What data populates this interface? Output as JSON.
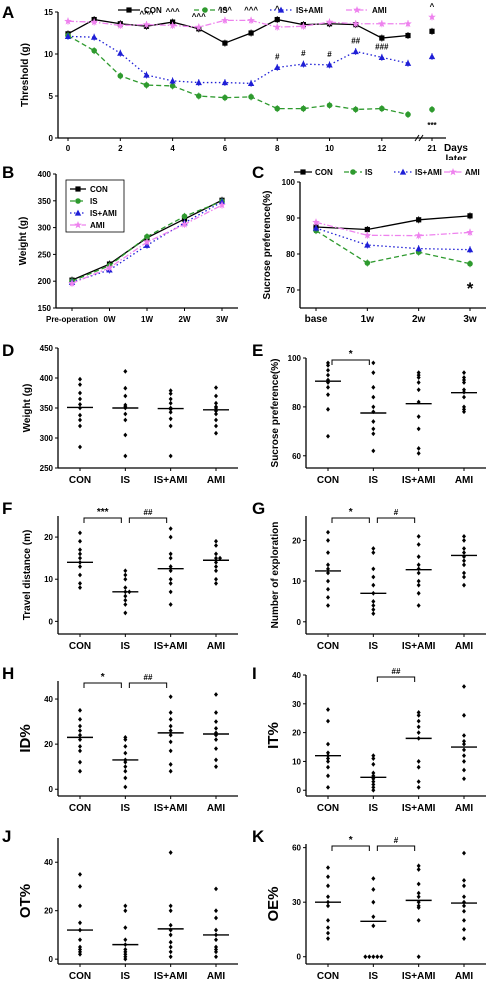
{
  "colors": {
    "con": "#000000",
    "is": "#2e9a2e",
    "isami": "#1f1fd6",
    "ami": "#ee82ee",
    "axis": "#000000"
  },
  "chart_data": [
    {
      "id": "A",
      "type": "line",
      "panel_label": "A",
      "ylabel": "Threshold (g)",
      "xlabel": "Days later",
      "ylim": [
        0,
        15
      ],
      "yticks": [
        0,
        5,
        10,
        15
      ],
      "x": [
        0,
        1,
        2,
        3,
        4,
        5,
        6,
        7,
        8,
        9,
        10,
        11,
        12,
        13,
        21
      ],
      "xtick_labels": [
        "0",
        "2",
        "4",
        "6",
        "8",
        "10",
        "12",
        "21"
      ],
      "xtick_values": [
        0,
        2,
        4,
        6,
        8,
        10,
        12,
        21
      ],
      "legend": [
        "CON",
        "IS",
        "IS+AMI",
        "AMI"
      ],
      "series": [
        {
          "name": "CON",
          "color": "#000000",
          "marker": "square",
          "dash": "solid",
          "values": [
            12.4,
            14.1,
            13.6,
            13.3,
            13.8,
            13.0,
            11.3,
            12.5,
            14.1,
            13.5,
            13.6,
            13.5,
            11.9,
            12.2,
            12.7
          ]
        },
        {
          "name": "IS",
          "color": "#2e9a2e",
          "marker": "circle",
          "dash": "dashed",
          "values": [
            12.2,
            10.4,
            7.4,
            6.3,
            6.2,
            5.0,
            4.8,
            4.9,
            3.5,
            3.5,
            3.9,
            3.4,
            3.5,
            2.8,
            3.4
          ]
        },
        {
          "name": "IS+AMI",
          "color": "#1f1fd6",
          "marker": "triangle",
          "dash": "dotted",
          "values": [
            12.1,
            12.0,
            10.1,
            7.5,
            6.8,
            6.6,
            6.6,
            6.5,
            8.4,
            8.8,
            8.7,
            10.3,
            9.6,
            8.9,
            9.7
          ]
        },
        {
          "name": "AMI",
          "color": "#ee82ee",
          "marker": "star",
          "dash": "dashdot",
          "values": [
            13.9,
            13.8,
            13.4,
            13.5,
            13.4,
            13.2,
            14.0,
            14.0,
            13.2,
            13.3,
            13.8,
            13.6,
            13.6,
            13.6,
            14.4
          ]
        }
      ],
      "annotations": [
        {
          "x": 3,
          "text": "^^^"
        },
        {
          "x": 4,
          "text": "^^^"
        },
        {
          "x": 5,
          "text": "^^^"
        },
        {
          "x": 6,
          "text": "^^^"
        },
        {
          "x": 7,
          "text": "^^^"
        },
        {
          "x": 8,
          "text": "^"
        },
        {
          "x": 8,
          "text": "#"
        },
        {
          "x": 9,
          "text": "#"
        },
        {
          "x": 10,
          "text": "#"
        },
        {
          "x": 11,
          "text": "##"
        },
        {
          "x": 12,
          "text": "###"
        },
        {
          "x": 21,
          "text": "^"
        },
        {
          "x": 21,
          "text": "***"
        }
      ]
    },
    {
      "id": "B",
      "type": "line",
      "panel_label": "B",
      "ylabel": "Weight (g)",
      "xlabel": "",
      "ylim": [
        150,
        400
      ],
      "yticks": [
        150,
        200,
        250,
        300,
        350,
        400
      ],
      "categories": [
        "Pre-operation",
        "0W",
        "1W",
        "2W",
        "3W"
      ],
      "legend": [
        "CON",
        "IS",
        "IS+AMI",
        "AMI"
      ],
      "series": [
        {
          "name": "CON",
          "color": "#000000",
          "marker": "square",
          "dash": "solid",
          "values": [
            202,
            232,
            281,
            316,
            351
          ]
        },
        {
          "name": "IS",
          "color": "#2e9a2e",
          "marker": "circle",
          "dash": "dashed",
          "values": [
            200,
            229,
            283,
            321,
            349
          ]
        },
        {
          "name": "IS+AMI",
          "color": "#1f1fd6",
          "marker": "triangle",
          "dash": "dotted",
          "values": [
            198,
            221,
            267,
            309,
            348
          ]
        },
        {
          "name": "AMI",
          "color": "#ee82ee",
          "marker": "star",
          "dash": "dashdot",
          "values": [
            196,
            225,
            273,
            306,
            342
          ]
        }
      ]
    },
    {
      "id": "C",
      "type": "line",
      "panel_label": "C",
      "ylabel": "Sucrose preference(%)",
      "xlabel": "",
      "ylim": [
        65,
        100
      ],
      "yticks": [
        70,
        80,
        90,
        100
      ],
      "categories": [
        "base",
        "1w",
        "2w",
        "3w"
      ],
      "legend": [
        "CON",
        "IS",
        "IS+AMI",
        "AMI"
      ],
      "series": [
        {
          "name": "CON",
          "color": "#000000",
          "marker": "square",
          "dash": "solid",
          "values": [
            87.5,
            86.8,
            89.5,
            90.6
          ]
        },
        {
          "name": "IS",
          "color": "#2e9a2e",
          "marker": "circle",
          "dash": "dashed",
          "values": [
            86.5,
            77.5,
            80.5,
            77.3
          ]
        },
        {
          "name": "IS+AMI",
          "color": "#1f1fd6",
          "marker": "triangle",
          "dash": "dotted",
          "values": [
            87.2,
            82.5,
            81.5,
            81.2
          ]
        },
        {
          "name": "AMI",
          "color": "#ee82ee",
          "marker": "star",
          "dash": "dashdot",
          "values": [
            88.8,
            85.2,
            85.1,
            86.0
          ]
        }
      ],
      "annotations": [
        {
          "x": "3w",
          "text": "*"
        }
      ]
    },
    {
      "id": "D",
      "type": "scatter",
      "panel_label": "D",
      "ylabel": "Weight (g)",
      "ylim": [
        250,
        450
      ],
      "yticks": [
        250,
        300,
        350,
        400,
        450
      ],
      "categories": [
        "CON",
        "IS",
        "IS+AMI",
        "AMI"
      ],
      "means": [
        351,
        350,
        349,
        347
      ],
      "points": [
        [
          398,
          389,
          375,
          365,
          356,
          350,
          338,
          330,
          320,
          285
        ],
        [
          411,
          383,
          370,
          355,
          352,
          350,
          340,
          330,
          305,
          270
        ],
        [
          379,
          374,
          365,
          358,
          350,
          348,
          343,
          332,
          320,
          270
        ],
        [
          384,
          370,
          358,
          352,
          350,
          345,
          340,
          330,
          320,
          308
        ]
      ]
    },
    {
      "id": "E",
      "type": "scatter",
      "panel_label": "E",
      "ylabel": "Sucrose preference(%)",
      "ylim": [
        55,
        100
      ],
      "yticks": [
        60,
        80,
        100
      ],
      "categories": [
        "CON",
        "IS",
        "IS+AMI",
        "AMI"
      ],
      "means": [
        90.5,
        77.5,
        81.3,
        85.8
      ],
      "points": [
        [
          98,
          97,
          95,
          93,
          91,
          90,
          88,
          85,
          79,
          68
        ],
        [
          98,
          94,
          88,
          84,
          80,
          78,
          74,
          71,
          69,
          62
        ],
        [
          94,
          93,
          92,
          90,
          87,
          82,
          76,
          71,
          63,
          61
        ],
        [
          94,
          92,
          91,
          90,
          87,
          86,
          84,
          80,
          78,
          79
        ]
      ],
      "brackets": [
        {
          "from": 0,
          "to": 1,
          "text": "*"
        }
      ]
    },
    {
      "id": "F",
      "type": "scatter",
      "panel_label": "F",
      "ylabel": "Travel distance (m)",
      "ylim": [
        -3,
        25
      ],
      "yticks": [
        0,
        10,
        20
      ],
      "categories": [
        "CON",
        "IS",
        "IS+AMI",
        "AMI"
      ],
      "means": [
        14.0,
        7.0,
        12.5,
        14.5
      ],
      "points": [
        [
          21,
          19,
          17,
          16,
          15,
          14,
          13,
          11,
          9,
          8
        ],
        [
          12,
          11,
          10,
          8,
          7,
          7,
          6,
          5,
          4,
          2
        ],
        [
          22,
          20,
          16,
          15,
          13,
          12,
          10,
          9,
          7,
          4
        ],
        [
          19,
          18,
          16,
          15,
          15,
          14,
          13,
          12,
          10,
          9
        ]
      ],
      "brackets": [
        {
          "from": 0,
          "to": 1,
          "text": "***"
        },
        {
          "from": 1,
          "to": 2,
          "text": "##"
        }
      ]
    },
    {
      "id": "G",
      "type": "scatter",
      "panel_label": "G",
      "ylabel": "Number of exploration",
      "ylim": [
        -3,
        26
      ],
      "yticks": [
        0,
        10,
        20
      ],
      "categories": [
        "CON",
        "IS",
        "IS+AMI",
        "AMI"
      ],
      "means": [
        12.5,
        7.0,
        12.8,
        16.3
      ],
      "points": [
        [
          22,
          20,
          17,
          14,
          13,
          12,
          10,
          8,
          6,
          4
        ],
        [
          18,
          17,
          13,
          11,
          9,
          7,
          5,
          4,
          3,
          2
        ],
        [
          21,
          19,
          16,
          14,
          13,
          12,
          10,
          9,
          7,
          4
        ],
        [
          21,
          20,
          18,
          17,
          16,
          15,
          14,
          12,
          11,
          9
        ]
      ],
      "brackets": [
        {
          "from": 0,
          "to": 1,
          "text": "*"
        },
        {
          "from": 1,
          "to": 2,
          "text": "#"
        }
      ]
    },
    {
      "id": "H",
      "type": "scatter",
      "panel_label": "H",
      "ylabel": "ID%",
      "ylim": [
        -3,
        48
      ],
      "yticks": [
        0,
        20,
        40
      ],
      "categories": [
        "CON",
        "IS",
        "IS+AMI",
        "AMI"
      ],
      "means": [
        23,
        13,
        25,
        24.5
      ],
      "points": [
        [
          35,
          31,
          28,
          26,
          24,
          22,
          19,
          17,
          12,
          8
        ],
        [
          23,
          22,
          19,
          16,
          13,
          12,
          10,
          8,
          5,
          1
        ],
        [
          41,
          34,
          31,
          28,
          26,
          24,
          21,
          17,
          11,
          8
        ],
        [
          42,
          34,
          30,
          27,
          25,
          24,
          22,
          18,
          13,
          10
        ]
      ],
      "brackets": [
        {
          "from": 0,
          "to": 1,
          "text": "*"
        },
        {
          "from": 1,
          "to": 2,
          "text": "##"
        }
      ]
    },
    {
      "id": "I",
      "type": "scatter",
      "panel_label": "I",
      "ylabel": "IT%",
      "ylim": [
        -2,
        40
      ],
      "yticks": [
        0,
        10,
        20,
        30,
        40
      ],
      "categories": [
        "CON",
        "IS",
        "IS+AMI",
        "AMI"
      ],
      "means": [
        12,
        4.5,
        18,
        15
      ],
      "points": [
        [
          28,
          24,
          16,
          13,
          12,
          11,
          10,
          8,
          5,
          1
        ],
        [
          12,
          11,
          9,
          6,
          5,
          4,
          3,
          2,
          1,
          0
        ],
        [
          27,
          26,
          24,
          22,
          20,
          18,
          10,
          8,
          3,
          1
        ],
        [
          36,
          26,
          19,
          17,
          16,
          14,
          12,
          10,
          7,
          4
        ]
      ],
      "brackets": [
        {
          "from": 1,
          "to": 2,
          "text": "##"
        }
      ]
    },
    {
      "id": "J",
      "type": "scatter",
      "panel_label": "J",
      "ylabel": "OT%",
      "ylim": [
        -2,
        50
      ],
      "yticks": [
        0,
        20,
        40
      ],
      "categories": [
        "CON",
        "IS",
        "IS+AMI",
        "AMI"
      ],
      "means": [
        12,
        6,
        12.5,
        10
      ],
      "points": [
        [
          35,
          30,
          22,
          15,
          12,
          8,
          5,
          4,
          3,
          2
        ],
        [
          22,
          20,
          13,
          8,
          6,
          4,
          3,
          2,
          1,
          0
        ],
        [
          44,
          22,
          20,
          14,
          12,
          10,
          7,
          5,
          3,
          1
        ],
        [
          29,
          20,
          17,
          12,
          10,
          8,
          5,
          4,
          3,
          1
        ]
      ]
    },
    {
      "id": "K",
      "type": "scatter",
      "panel_label": "K",
      "ylabel": "OE%",
      "ylim": [
        -4,
        62
      ],
      "yticks": [
        0,
        30,
        60
      ],
      "categories": [
        "CON",
        "IS",
        "IS+AMI",
        "AMI"
      ],
      "means": [
        30,
        19.5,
        31,
        29.5
      ],
      "points": [
        [
          49,
          44,
          39,
          33,
          30,
          28,
          20,
          16,
          13,
          10
        ],
        [
          43,
          37,
          30,
          22,
          17,
          0,
          0,
          0,
          0,
          0
        ],
        [
          50,
          48,
          40,
          35,
          33,
          30,
          28,
          27,
          20,
          0
        ],
        [
          57,
          42,
          39,
          33,
          30,
          28,
          25,
          20,
          15,
          10
        ]
      ],
      "brackets": [
        {
          "from": 0,
          "to": 1,
          "text": "*"
        },
        {
          "from": 1,
          "to": 2,
          "text": "#"
        }
      ]
    }
  ]
}
